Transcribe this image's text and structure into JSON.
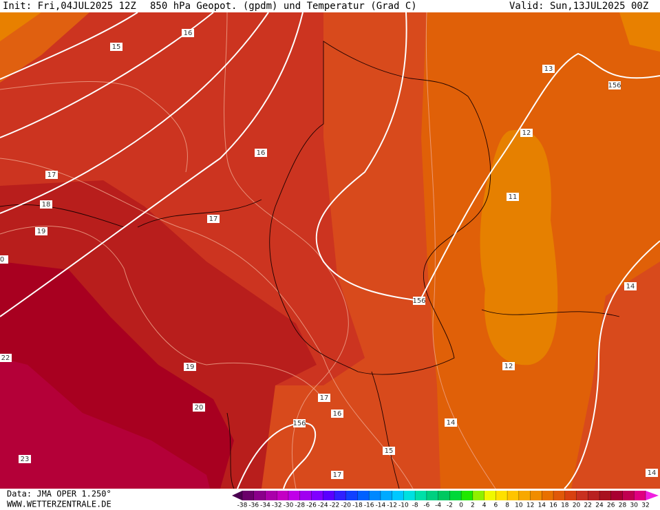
{
  "header": {
    "init": "Init: Fri,04JUL2025 12Z",
    "title": "850 hPa Geopot. (gpdm) und Temperatur (Grad C)",
    "valid": "Valid: Sun,13JUL2025 00Z"
  },
  "contour_labels": [
    16,
    15,
    13,
    156,
    12,
    16,
    17,
    11,
    18,
    17,
    19,
    0,
    14,
    156,
    22,
    12,
    19,
    17,
    20,
    16,
    156,
    14,
    15,
    23,
    17,
    14
  ],
  "footer": {
    "source": "Data: JMA OPER 1.250°",
    "site": "WWW.WETTERZENTRALE.DE"
  },
  "colorbar": {
    "ticks": [
      -38,
      -36,
      -34,
      -32,
      -30,
      -28,
      -26,
      -24,
      -22,
      -20,
      -18,
      -16,
      -14,
      -12,
      -10,
      -8,
      -6,
      -4,
      -2,
      0,
      2,
      4,
      6,
      8,
      10,
      12,
      14,
      16,
      18,
      20,
      22,
      24,
      26,
      28,
      30,
      32
    ],
    "colors": [
      "#4a0050",
      "#6a006a",
      "#8a008a",
      "#aa00aa",
      "#c400c4",
      "#c000e8",
      "#a000f0",
      "#8000ff",
      "#5a00ff",
      "#3020ff",
      "#1040ff",
      "#0060ff",
      "#0088ff",
      "#00aaff",
      "#00c8ff",
      "#00e0e0",
      "#00e0a8",
      "#00d080",
      "#00c860",
      "#00d838",
      "#20e800",
      "#90f000",
      "#f0f800",
      "#ffe000",
      "#ffc400",
      "#f8a800",
      "#f08c00",
      "#e87000",
      "#e05808",
      "#d84010",
      "#c83020",
      "#b82020",
      "#a81020",
      "#a80030",
      "#c00050",
      "#e00080",
      "#f020e0"
    ]
  }
}
